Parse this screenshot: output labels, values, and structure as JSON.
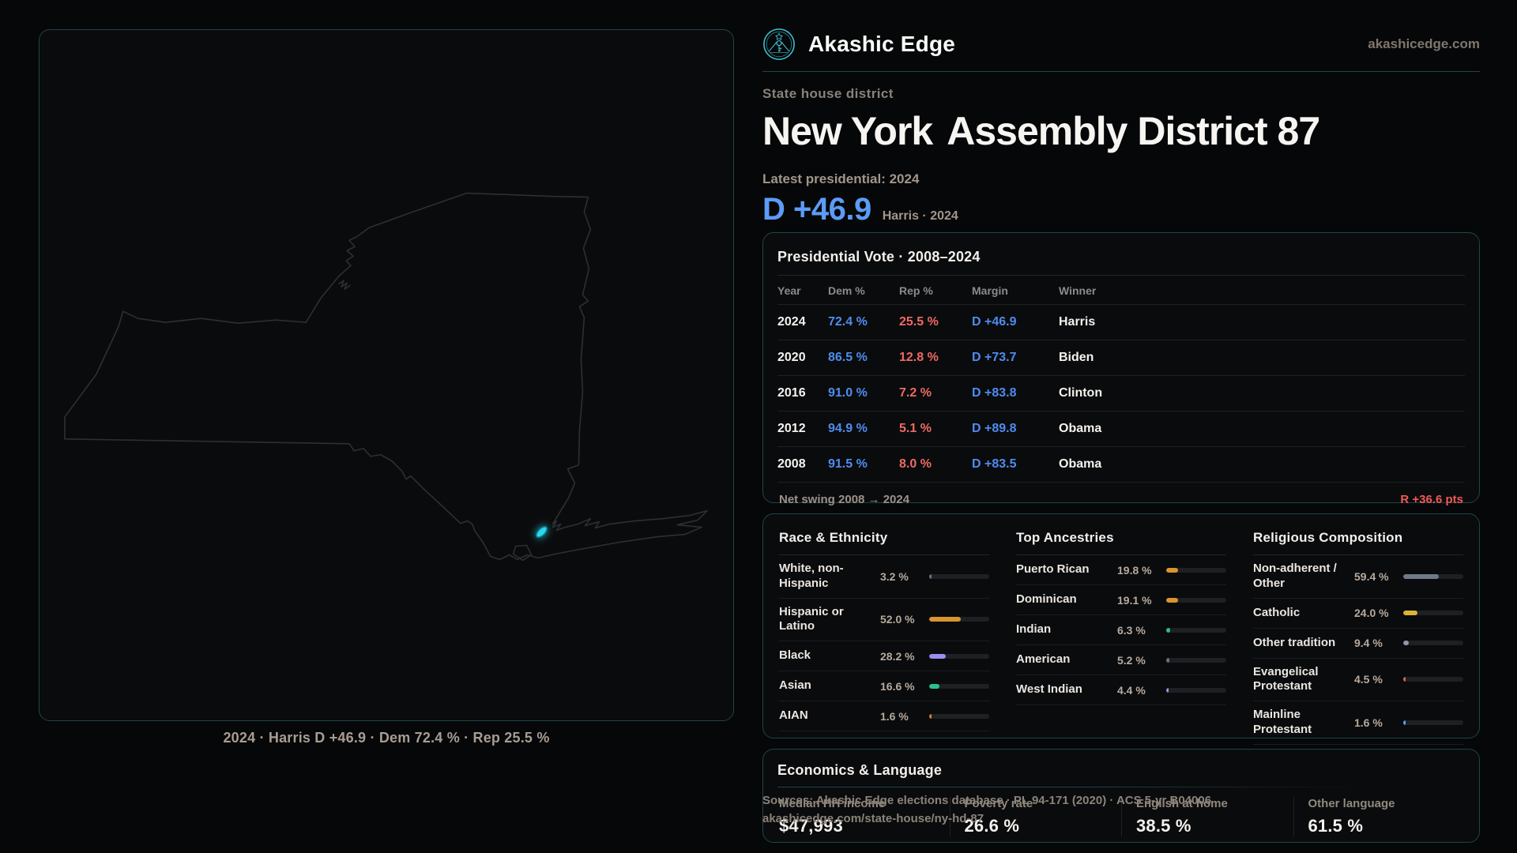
{
  "colors": {
    "accent_border": "#1d444d",
    "accent_cyan": "#3fc6d8",
    "dem_blue": "#4f8cf0",
    "dem_bright_blue": "#5b9cf6",
    "rep_red": "#ee6a66",
    "swing_red": "#ef5a55",
    "district_highlight": "#29d8ee",
    "map_outline": "#2d2f33"
  },
  "brand": {
    "name": "Akashic Edge",
    "domain": "akashicedge.com",
    "logo_icon": "akashic-edge-emblem"
  },
  "header": {
    "kicker": "State house district",
    "title_part1": "New York",
    "title_part2": "Assembly District 87",
    "latest_label": "Latest presidential: 2024",
    "margin_value": "D +46.9",
    "margin_note": "Harris · 2024"
  },
  "map": {
    "state": "New York",
    "caption": "2024 · Harris D +46.9 · Dem 72.4 % · Rep 25.5 %"
  },
  "presidential": {
    "title": "Presidential Vote · 2008–2024",
    "columns": [
      "Year",
      "Dem %",
      "Rep %",
      "Margin",
      "Winner"
    ],
    "rows": [
      {
        "year": "2024",
        "dem": "72.4 %",
        "rep": "25.5 %",
        "margin": "D +46.9",
        "winner": "Harris"
      },
      {
        "year": "2020",
        "dem": "86.5 %",
        "rep": "12.8 %",
        "margin": "D +73.7",
        "winner": "Biden"
      },
      {
        "year": "2016",
        "dem": "91.0 %",
        "rep": "7.2 %",
        "margin": "D +83.8",
        "winner": "Clinton"
      },
      {
        "year": "2012",
        "dem": "94.9 %",
        "rep": "5.1 %",
        "margin": "D +89.8",
        "winner": "Obama"
      },
      {
        "year": "2008",
        "dem": "91.5 %",
        "rep": "8.0 %",
        "margin": "D +83.5",
        "winner": "Obama"
      }
    ],
    "net_swing_label": "Net swing 2008 → 2024",
    "net_swing_value": "R +36.6 pts"
  },
  "demographics": [
    {
      "slug": "race-ethnicity",
      "title": "Race & Ethnicity",
      "rows": [
        {
          "label": "White, non-Hispanic",
          "value": "3.2 %",
          "pct": 3.2,
          "color": "#64748b"
        },
        {
          "label": "Hispanic or Latino",
          "value": "52.0 %",
          "pct": 52.0,
          "color": "#d9952f"
        },
        {
          "label": "Black",
          "value": "28.2 %",
          "pct": 28.2,
          "color": "#9c8df0"
        },
        {
          "label": "Asian",
          "value": "16.6 %",
          "pct": 16.6,
          "color": "#2ebd8f"
        },
        {
          "label": "AIAN",
          "value": "1.6 %",
          "pct": 1.6,
          "color": "#cf8430"
        }
      ]
    },
    {
      "slug": "top-ancestries",
      "title": "Top Ancestries",
      "rows": [
        {
          "label": "Puerto Rican",
          "value": "19.8 %",
          "pct": 19.8,
          "color": "#d9952f"
        },
        {
          "label": "Dominican",
          "value": "19.1 %",
          "pct": 19.1,
          "color": "#d9952f"
        },
        {
          "label": "Indian",
          "value": "6.3 %",
          "pct": 6.3,
          "color": "#2ebd8f"
        },
        {
          "label": "American",
          "value": "5.2 %",
          "pct": 5.2,
          "color": "#64748b"
        },
        {
          "label": "West Indian",
          "value": "4.4 %",
          "pct": 4.4,
          "color": "#9c8df0"
        }
      ]
    },
    {
      "slug": "religious-composition",
      "title": "Religious Composition",
      "rows": [
        {
          "label": "Non-adherent / Other",
          "value": "59.4 %",
          "pct": 59.4,
          "color": "#6e7a8a"
        },
        {
          "label": "Catholic",
          "value": "24.0 %",
          "pct": 24.0,
          "color": "#dcb23a"
        },
        {
          "label": "Other tradition",
          "value": "9.4 %",
          "pct": 9.4,
          "color": "#8d97a8"
        },
        {
          "label": "Evangelical Protestant",
          "value": "4.5 %",
          "pct": 4.5,
          "color": "#e25d5d"
        },
        {
          "label": "Mainline Protestant",
          "value": "1.6 %",
          "pct": 1.6,
          "color": "#58a4f0"
        }
      ]
    }
  ],
  "economics": {
    "title": "Economics & Language",
    "stats": [
      {
        "slug": "median-hh-income",
        "label": "Median HH income",
        "value": "$47,993"
      },
      {
        "slug": "poverty-rate",
        "label": "Poverty rate",
        "value": "26.6 %"
      },
      {
        "slug": "english-at-home",
        "label": "English at home",
        "value": "38.5 %"
      },
      {
        "slug": "other-language",
        "label": "Other language",
        "value": "61.5 %"
      }
    ]
  },
  "sources": {
    "line1": "Sources: Akashic Edge elections database · PL 94-171 (2020) · ACS 5-yr B04006",
    "line2": "akashicedge.com/state-house/ny-hd-87"
  }
}
